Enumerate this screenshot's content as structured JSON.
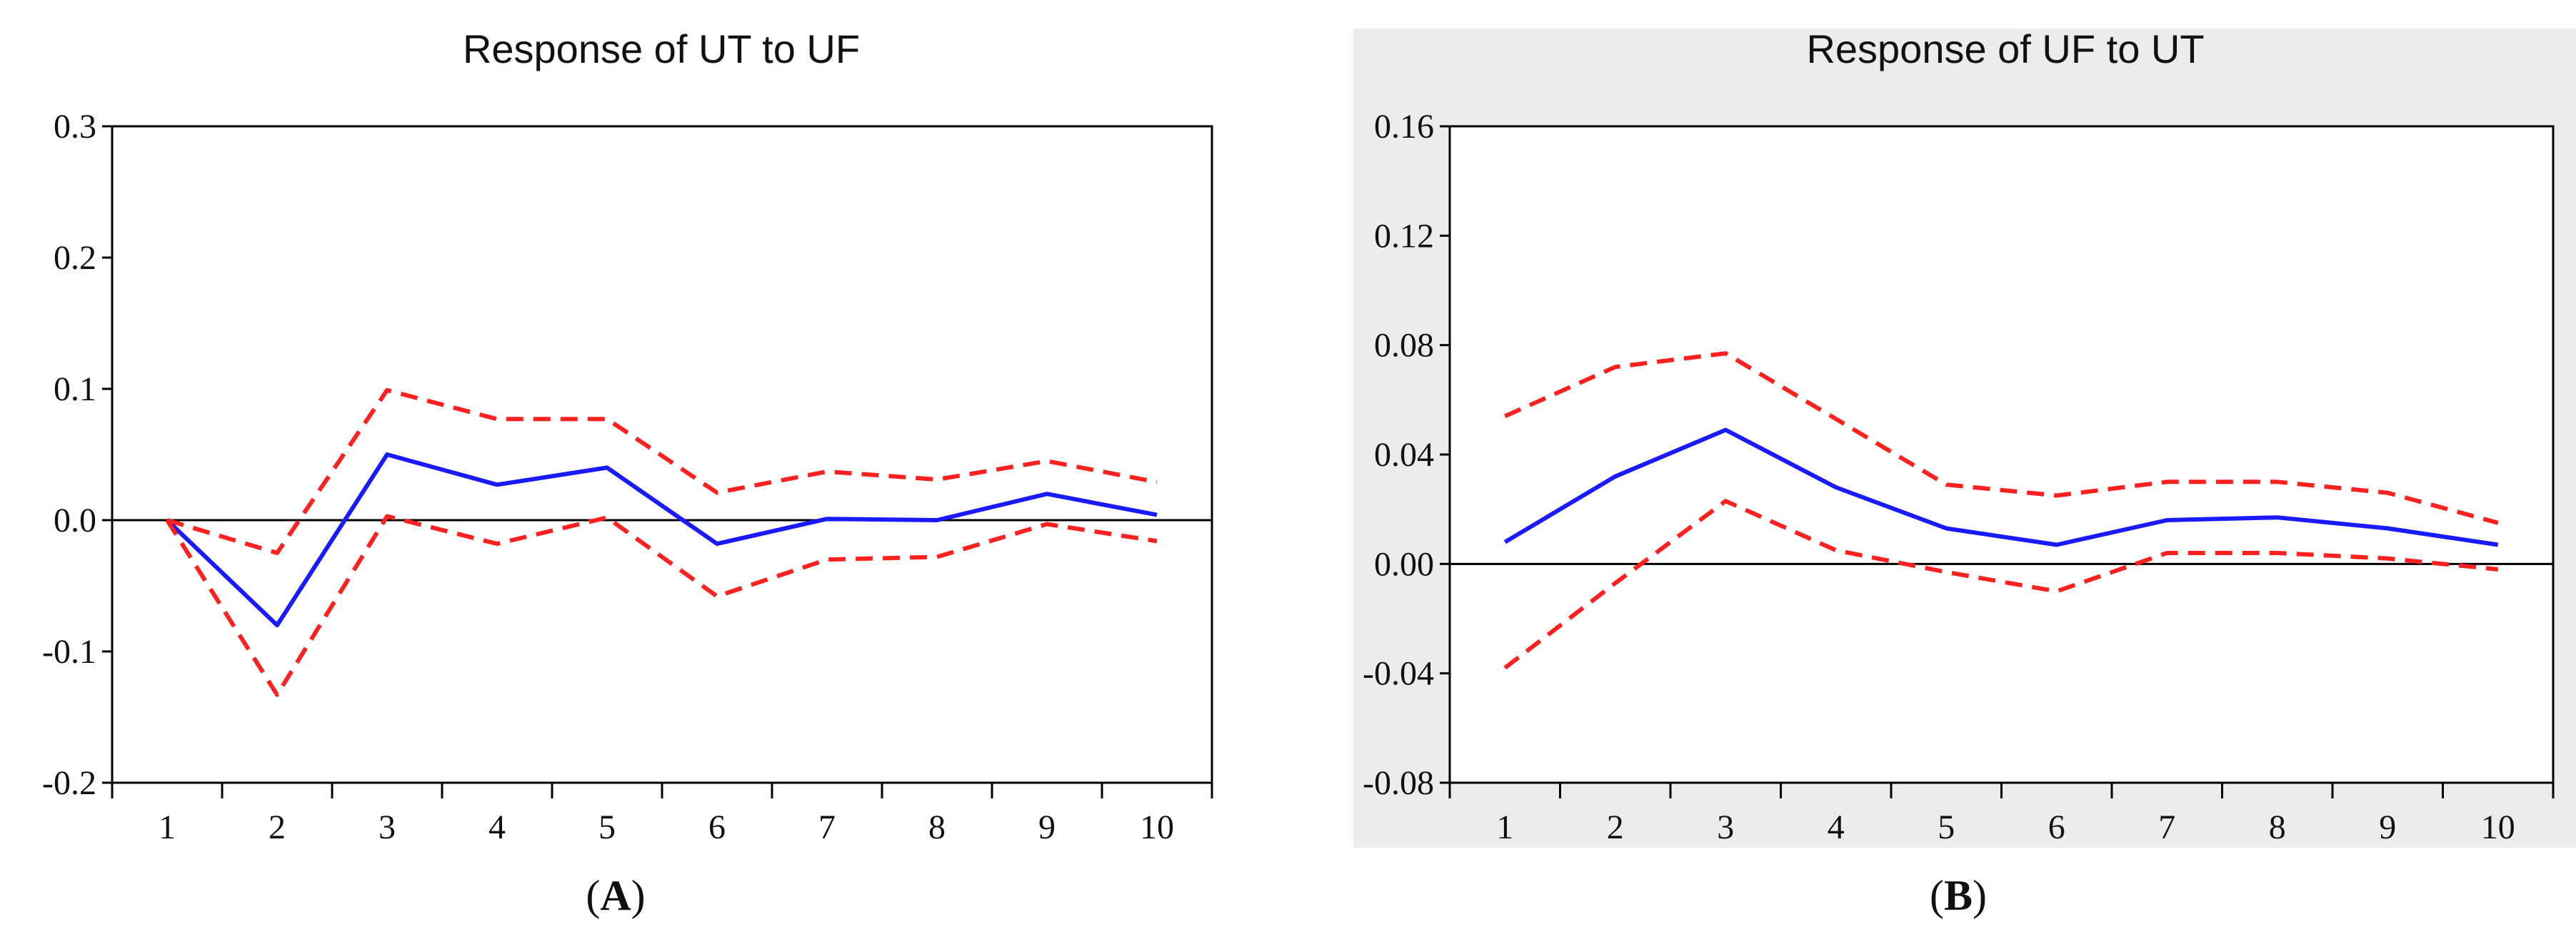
{
  "chart_data": [
    {
      "type": "line",
      "panel": "A",
      "title": "Response of UT to UF",
      "xlabel": "",
      "ylabel": "",
      "x": [
        1,
        2,
        3,
        4,
        5,
        6,
        7,
        8,
        9,
        10
      ],
      "xticks": [
        "1",
        "2",
        "3",
        "4",
        "5",
        "6",
        "7",
        "8",
        "9",
        "10"
      ],
      "ylim": [
        -0.2,
        0.3
      ],
      "yticks": [
        -0.2,
        -0.1,
        0.0,
        0.1,
        0.2,
        0.3
      ],
      "ytick_labels": [
        "-0.2",
        "-0.1",
        "0.0",
        "0.1",
        "0.2",
        "0.3"
      ],
      "zero_line": true,
      "background": "#ffffff",
      "series": [
        {
          "name": "response",
          "style": "solid",
          "color": "#1a1aff",
          "values": [
            0.0,
            -0.08,
            0.05,
            0.027,
            0.04,
            -0.018,
            0.001,
            0.0,
            0.02,
            0.004
          ]
        },
        {
          "name": "upper band",
          "style": "dashed",
          "color": "#ff2020",
          "values": [
            0.0,
            -0.025,
            0.099,
            0.077,
            0.077,
            0.021,
            0.037,
            0.031,
            0.045,
            0.029
          ]
        },
        {
          "name": "lower band",
          "style": "dashed",
          "color": "#ff2020",
          "values": [
            0.0,
            -0.133,
            0.003,
            -0.018,
            0.002,
            -0.058,
            -0.03,
            -0.028,
            -0.003,
            -0.016
          ]
        }
      ]
    },
    {
      "type": "line",
      "panel": "B",
      "title": "Response of UF to UT",
      "xlabel": "",
      "ylabel": "",
      "x": [
        1,
        2,
        3,
        4,
        5,
        6,
        7,
        8,
        9,
        10
      ],
      "xticks": [
        "1",
        "2",
        "3",
        "4",
        "5",
        "6",
        "7",
        "8",
        "9",
        "10"
      ],
      "ylim": [
        -0.08,
        0.16
      ],
      "yticks": [
        -0.08,
        -0.04,
        0.0,
        0.04,
        0.08,
        0.12,
        0.16
      ],
      "ytick_labels": [
        "-0.08",
        "-0.04",
        "0.00",
        "0.04",
        "0.08",
        "0.12",
        "0.16"
      ],
      "zero_line": true,
      "background": "#ececec",
      "series": [
        {
          "name": "response",
          "style": "solid",
          "color": "#1a1aff",
          "values": [
            0.008,
            0.032,
            0.049,
            0.028,
            0.013,
            0.007,
            0.016,
            0.017,
            0.013,
            0.007
          ]
        },
        {
          "name": "upper band",
          "style": "dashed",
          "color": "#ff2020",
          "values": [
            0.054,
            0.072,
            0.077,
            0.053,
            0.029,
            0.025,
            0.03,
            0.03,
            0.026,
            0.015
          ]
        },
        {
          "name": "lower band",
          "style": "dashed",
          "color": "#ff2020",
          "values": [
            -0.038,
            -0.007,
            0.023,
            0.005,
            -0.003,
            -0.01,
            0.004,
            0.004,
            0.002,
            -0.002
          ]
        }
      ]
    }
  ],
  "panel_labels": [
    "A",
    "B"
  ]
}
